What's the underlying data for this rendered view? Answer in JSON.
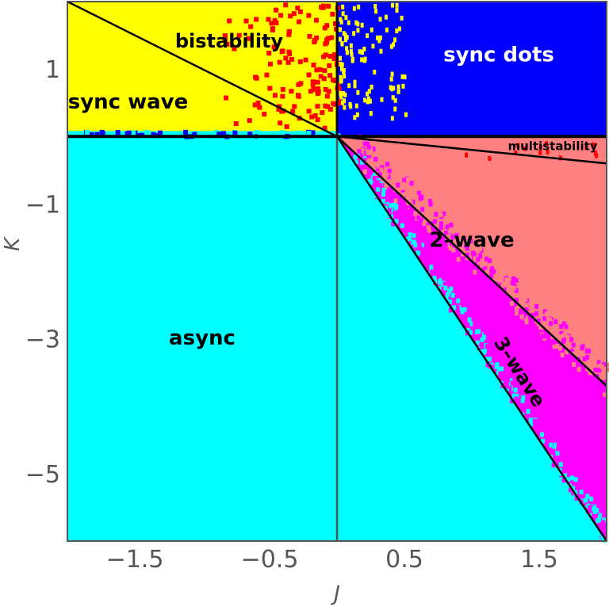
{
  "chart_data": {
    "type": "heatmap",
    "title": "",
    "xlabel": "J",
    "ylabel": "K",
    "xlim": [
      -2,
      2
    ],
    "ylim": [
      -6,
      2
    ],
    "x_ticks": [
      -1.5,
      -0.5,
      0.5,
      1.5
    ],
    "y_ticks": [
      1,
      -1,
      -3,
      -5
    ],
    "x_tick_labels": [
      "−1.5",
      "−0.5",
      "0.5",
      "1.5"
    ],
    "y_tick_labels": [
      "1",
      "−1",
      "−3",
      "−5"
    ],
    "grid": false,
    "legend": "none",
    "regions": [
      {
        "name": "sync wave",
        "label": "sync wave",
        "color": "#ffff00",
        "label_at": [
          -1.55,
          0.5
        ]
      },
      {
        "name": "bistability",
        "label": "bistability",
        "color": "#ffff00",
        "label_at": [
          -0.8,
          1.4
        ]
      },
      {
        "name": "sync dots",
        "label": "sync dots",
        "color": "#0000ff",
        "label_at": [
          1.2,
          1.2
        ]
      },
      {
        "name": "async",
        "label": "async",
        "color": "#00ffff",
        "label_at": [
          -1.0,
          -3.0
        ]
      },
      {
        "name": "2-wave",
        "label": "2–wave",
        "color": "#ff8080",
        "label_at": [
          1.0,
          -1.55
        ]
      },
      {
        "name": "3-wave",
        "label": "3–wave",
        "color": "#ff00ff",
        "label_at": [
          1.35,
          -3.5
        ]
      },
      {
        "name": "multistability",
        "label": "multistability",
        "color": "#ff8080",
        "label_at": [
          1.6,
          -0.15
        ]
      }
    ],
    "boundaries": [
      {
        "name": "K=0 line",
        "from": [
          -2,
          0
        ],
        "to": [
          2,
          0
        ]
      },
      {
        "name": "J=0 line",
        "from": [
          0,
          -6
        ],
        "to": [
          0,
          2
        ]
      },
      {
        "name": "bistability boundary",
        "from": [
          -2,
          2
        ],
        "to": [
          0,
          0
        ]
      },
      {
        "name": "multistability boundary",
        "from": [
          0,
          0
        ],
        "to": [
          2,
          -0.4
        ]
      },
      {
        "name": "2-wave boundary",
        "from": [
          0,
          0
        ],
        "to": [
          2,
          -3.7
        ]
      },
      {
        "name": "3-wave boundary",
        "from": [
          0,
          0
        ],
        "to": [
          2,
          -6
        ]
      }
    ]
  },
  "colors": {
    "sync_wave": "#ffff00",
    "sync_dots": "#0000ff",
    "async": "#00ffff",
    "two_wave": "#ff8080",
    "three_wave": "#ff00ff",
    "scatter_red": "#ff0000",
    "text_dark": "#000000",
    "text_light": "#ffffff",
    "axis_gray": "#555555"
  }
}
